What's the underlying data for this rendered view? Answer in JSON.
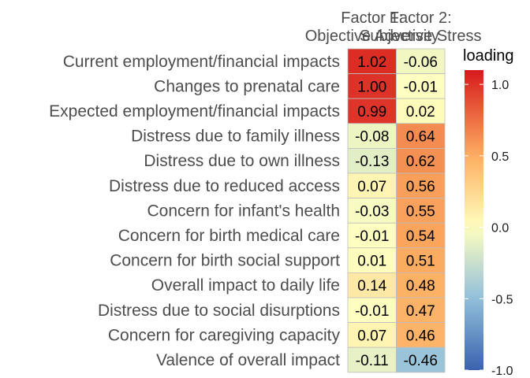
{
  "chart_data": {
    "type": "heatmap",
    "columns": [
      "Factor 1:\nObjective Adversity",
      "Factor 2:\nSubjective Stress"
    ],
    "rows": [
      "Current employment/financial impacts",
      "Changes to prenatal care",
      "Expected employment/financial impacts",
      "Distress due to family illness",
      "Distress due to own illness",
      "Distress due to reduced access",
      "Concern for infant's health",
      "Concern for birth medical care",
      "Concern for birth social support",
      "Overall impact to daily life",
      "Distress due to social disurptions",
      "Concern for caregiving capacity",
      "Valence of overall impact"
    ],
    "values": [
      [
        1.02,
        -0.06
      ],
      [
        1.0,
        -0.01
      ],
      [
        0.99,
        0.02
      ],
      [
        -0.08,
        0.64
      ],
      [
        -0.13,
        0.62
      ],
      [
        0.07,
        0.56
      ],
      [
        -0.03,
        0.55
      ],
      [
        -0.01,
        0.54
      ],
      [
        0.01,
        0.51
      ],
      [
        0.14,
        0.48
      ],
      [
        -0.01,
        0.47
      ],
      [
        0.07,
        0.46
      ],
      [
        -0.11,
        -0.46
      ]
    ],
    "labels": [
      [
        "1.02",
        "-0.06"
      ],
      [
        "1.00",
        "-0.01"
      ],
      [
        "0.99",
        "0.02"
      ],
      [
        "-0.08",
        "0.64"
      ],
      [
        "-0.13",
        "0.62"
      ],
      [
        "0.07",
        "0.56"
      ],
      [
        "-0.03",
        "0.55"
      ],
      [
        "-0.01",
        "0.54"
      ],
      [
        "0.01",
        "0.51"
      ],
      [
        "0.14",
        "0.48"
      ],
      [
        "-0.01",
        "0.47"
      ],
      [
        "0.07",
        "0.46"
      ],
      [
        "-0.11",
        "-0.46"
      ]
    ],
    "legend": {
      "title": "loading",
      "range": [
        -1.0,
        1.1
      ],
      "ticks": [
        1.0,
        0.5,
        0.0,
        -0.5,
        -1.0
      ],
      "tick_labels": [
        "1.0",
        "0.5",
        "0.0",
        "-0.5",
        "-1.0"
      ],
      "colors": {
        "low": "#3a62ad",
        "mid": "#ffffbf",
        "high": "#d7191c"
      }
    }
  }
}
